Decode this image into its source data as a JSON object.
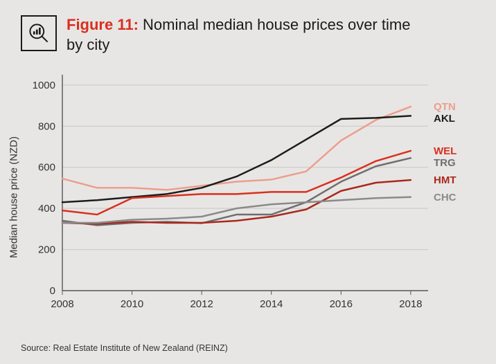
{
  "figure_label": "Figure 11:",
  "title_rest": " Nominal median house prices over time by city",
  "ylabel": "Median house price (NZD)",
  "source": "Source: Real Estate Institute of New Zealand (REINZ)",
  "chart": {
    "type": "line",
    "background_color": "#e8e6e4",
    "grid_color": "#c9c6c3",
    "axis_color": "#555",
    "tick_fontsize": 15,
    "label_fontsize": 15,
    "xlim": [
      2008,
      2018.5
    ],
    "ylim": [
      0,
      1050
    ],
    "xticks": [
      2008,
      2010,
      2012,
      2014,
      2016,
      2018
    ],
    "yticks": [
      0,
      200,
      400,
      600,
      800,
      1000
    ],
    "line_width": 2.5,
    "series": [
      {
        "id": "QTN",
        "label": "QTN",
        "color": "#ea9f8d",
        "x": [
          2008,
          2009,
          2010,
          2011,
          2012,
          2013,
          2014,
          2015,
          2016,
          2017,
          2018
        ],
        "y": [
          545,
          500,
          500,
          490,
          510,
          530,
          540,
          580,
          730,
          830,
          895
        ]
      },
      {
        "id": "AKL",
        "label": "AKL",
        "color": "#1c1c1c",
        "x": [
          2008,
          2009,
          2010,
          2011,
          2012,
          2013,
          2014,
          2015,
          2016,
          2017,
          2018
        ],
        "y": [
          430,
          440,
          455,
          470,
          500,
          555,
          635,
          735,
          835,
          840,
          850
        ]
      },
      {
        "id": "WEL",
        "label": "WEL",
        "color": "#da2f1f",
        "x": [
          2008,
          2009,
          2010,
          2011,
          2012,
          2013,
          2014,
          2015,
          2016,
          2017,
          2018
        ],
        "y": [
          390,
          370,
          450,
          460,
          470,
          470,
          480,
          480,
          550,
          630,
          680
        ]
      },
      {
        "id": "TRG",
        "label": "TRG",
        "color": "#6e6e6e",
        "x": [
          2008,
          2009,
          2010,
          2011,
          2012,
          2013,
          2014,
          2015,
          2016,
          2017,
          2018
        ],
        "y": [
          340,
          318,
          330,
          335,
          328,
          370,
          370,
          430,
          530,
          605,
          645
        ]
      },
      {
        "id": "HMT",
        "label": "HMT",
        "color": "#a8291d",
        "x": [
          2008,
          2009,
          2010,
          2011,
          2012,
          2013,
          2014,
          2015,
          2016,
          2017,
          2018
        ],
        "y": [
          330,
          325,
          335,
          330,
          330,
          340,
          360,
          395,
          485,
          525,
          538
        ]
      },
      {
        "id": "CHC",
        "label": "CHC",
        "color": "#8a8a8a",
        "x": [
          2008,
          2009,
          2010,
          2011,
          2012,
          2013,
          2014,
          2015,
          2016,
          2017,
          2018
        ],
        "y": [
          330,
          330,
          345,
          350,
          360,
          400,
          420,
          430,
          440,
          450,
          455
        ]
      }
    ]
  }
}
